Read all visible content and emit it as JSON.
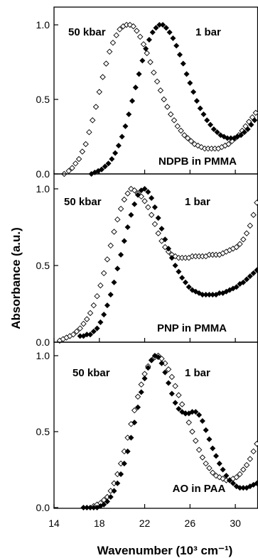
{
  "chart_data": {
    "type": "scatter",
    "xlabel": "Wavenumber (10³ cm⁻¹)",
    "ylabel": "Absorbance (a.u.)",
    "xlim": [
      14,
      32
    ],
    "x_ticks": [
      "14",
      "18",
      "22",
      "26",
      "30"
    ],
    "x_tick_values": [
      14,
      18,
      22,
      26,
      30
    ],
    "ylim": [
      0,
      1.05
    ],
    "y_ticks": [
      "0.0",
      "0.5",
      "1.0"
    ],
    "y_tick_values": [
      0,
      0.5,
      1.0
    ],
    "panels": [
      {
        "sample": "NDPB in PMMA",
        "series": [
          {
            "name": "50 kbar",
            "marker": "open-diamond",
            "x": [
              14.9,
              15.3,
              15.6,
              15.9,
              16.2,
              16.5,
              16.8,
              17.1,
              17.4,
              17.7,
              18.0,
              18.3,
              18.6,
              18.9,
              19.2,
              19.5,
              19.8,
              20.1,
              20.4,
              20.7,
              21.0,
              21.3,
              21.6,
              21.9,
              22.2,
              22.5,
              22.8,
              23.1,
              23.4,
              23.7,
              24.0,
              24.3,
              24.6,
              24.9,
              25.2,
              25.5,
              25.8,
              26.1,
              26.4,
              26.7,
              27.0,
              27.3,
              27.6,
              27.9,
              28.2,
              28.5,
              28.8,
              29.1,
              29.4,
              29.7,
              30.0,
              30.3,
              30.6,
              30.9,
              31.2,
              31.5,
              31.8
            ],
            "y": [
              0.0,
              0.02,
              0.04,
              0.07,
              0.1,
              0.15,
              0.2,
              0.28,
              0.36,
              0.45,
              0.55,
              0.65,
              0.74,
              0.82,
              0.88,
              0.93,
              0.97,
              0.99,
              1.0,
              1.0,
              0.99,
              0.96,
              0.92,
              0.87,
              0.81,
              0.75,
              0.68,
              0.62,
              0.56,
              0.5,
              0.45,
              0.4,
              0.36,
              0.32,
              0.29,
              0.26,
              0.24,
              0.22,
              0.2,
              0.19,
              0.18,
              0.17,
              0.17,
              0.17,
              0.17,
              0.17,
              0.18,
              0.19,
              0.2,
              0.22,
              0.24,
              0.26,
              0.29,
              0.32,
              0.35,
              0.38,
              0.41
            ]
          },
          {
            "name": "1 bar",
            "marker": "filled-diamond",
            "x": [
              17.3,
              17.6,
              17.9,
              18.2,
              18.5,
              18.8,
              19.1,
              19.4,
              19.7,
              20.0,
              20.3,
              20.6,
              20.9,
              21.2,
              21.5,
              21.8,
              22.1,
              22.4,
              22.7,
              23.0,
              23.3,
              23.6,
              23.9,
              24.2,
              24.5,
              24.8,
              25.1,
              25.4,
              25.7,
              26.0,
              26.3,
              26.6,
              26.9,
              27.2,
              27.5,
              27.8,
              28.1,
              28.4,
              28.7,
              29.0,
              29.3,
              29.6,
              29.9,
              30.2,
              30.5,
              30.8,
              31.1,
              31.4,
              31.7
            ],
            "y": [
              0.0,
              0.01,
              0.02,
              0.03,
              0.05,
              0.07,
              0.1,
              0.14,
              0.19,
              0.25,
              0.32,
              0.4,
              0.49,
              0.58,
              0.67,
              0.76,
              0.84,
              0.9,
              0.95,
              0.98,
              1.0,
              1.0,
              0.98,
              0.95,
              0.91,
              0.86,
              0.8,
              0.74,
              0.67,
              0.61,
              0.55,
              0.49,
              0.44,
              0.4,
              0.36,
              0.33,
              0.3,
              0.28,
              0.26,
              0.25,
              0.24,
              0.24,
              0.24,
              0.25,
              0.26,
              0.28,
              0.3,
              0.33,
              0.36
            ]
          }
        ]
      },
      {
        "sample": "PNP in PMMA",
        "series": [
          {
            "name": "50 kbar",
            "marker": "open-diamond",
            "x": [
              14.5,
              14.8,
              15.1,
              15.4,
              15.7,
              16.0,
              16.3,
              16.6,
              16.9,
              17.2,
              17.5,
              17.8,
              18.1,
              18.4,
              18.7,
              19.0,
              19.3,
              19.6,
              19.9,
              20.2,
              20.5,
              20.8,
              21.1,
              21.4,
              21.7,
              22.0,
              22.3,
              22.6,
              22.9,
              23.2,
              23.5,
              23.8,
              24.1,
              24.4,
              24.7,
              25.0,
              25.3,
              25.6,
              25.9,
              26.2,
              26.5,
              26.8,
              27.1,
              27.4,
              27.7,
              28.0,
              28.3,
              28.6,
              28.9,
              29.2,
              29.5,
              29.8,
              30.1,
              30.4,
              30.7,
              31.0,
              31.3,
              31.6,
              31.9
            ],
            "y": [
              0.01,
              0.02,
              0.03,
              0.04,
              0.05,
              0.07,
              0.09,
              0.12,
              0.15,
              0.19,
              0.24,
              0.3,
              0.37,
              0.45,
              0.54,
              0.63,
              0.72,
              0.8,
              0.87,
              0.93,
              0.97,
              1.0,
              0.99,
              0.97,
              0.95,
              0.92,
              0.88,
              0.83,
              0.77,
              0.71,
              0.66,
              0.62,
              0.59,
              0.57,
              0.56,
              0.55,
              0.55,
              0.55,
              0.55,
              0.56,
              0.56,
              0.56,
              0.56,
              0.56,
              0.57,
              0.57,
              0.57,
              0.57,
              0.58,
              0.59,
              0.6,
              0.61,
              0.62,
              0.64,
              0.67,
              0.71,
              0.76,
              0.83,
              0.91
            ]
          },
          {
            "name": "1 bar",
            "marker": "filled-diamond",
            "x": [
              16.3,
              16.6,
              16.9,
              17.2,
              17.5,
              17.8,
              18.1,
              18.4,
              18.7,
              19.0,
              19.3,
              19.6,
              19.9,
              20.2,
              20.5,
              20.8,
              21.1,
              21.4,
              21.7,
              22.0,
              22.3,
              22.6,
              22.9,
              23.2,
              23.5,
              23.8,
              24.1,
              24.4,
              24.7,
              25.0,
              25.3,
              25.6,
              25.9,
              26.2,
              26.5,
              26.8,
              27.1,
              27.4,
              27.7,
              28.0,
              28.3,
              28.6,
              28.9,
              29.2,
              29.5,
              29.8,
              30.1,
              30.4,
              30.7,
              31.0,
              31.3,
              31.6,
              31.9
            ],
            "y": [
              0.04,
              0.04,
              0.05,
              0.05,
              0.07,
              0.09,
              0.13,
              0.18,
              0.24,
              0.31,
              0.39,
              0.48,
              0.57,
              0.66,
              0.75,
              0.83,
              0.9,
              0.96,
              0.99,
              1.0,
              0.98,
              0.94,
              0.88,
              0.81,
              0.74,
              0.67,
              0.61,
              0.55,
              0.5,
              0.46,
              0.42,
              0.39,
              0.36,
              0.34,
              0.33,
              0.32,
              0.31,
              0.31,
              0.31,
              0.31,
              0.31,
              0.32,
              0.32,
              0.33,
              0.34,
              0.35,
              0.36,
              0.38,
              0.39,
              0.41,
              0.43,
              0.45,
              0.47
            ]
          }
        ]
      },
      {
        "sample": "AO in PAA",
        "series": [
          {
            "name": "50 kbar",
            "marker": "open-diamond",
            "x": [
              17.5,
              17.8,
              18.1,
              18.4,
              18.7,
              19.0,
              19.3,
              19.6,
              19.9,
              20.2,
              20.5,
              20.8,
              21.1,
              21.4,
              21.7,
              22.0,
              22.3,
              22.6,
              22.9,
              23.2,
              23.5,
              23.8,
              24.1,
              24.4,
              24.7,
              25.0,
              25.3,
              25.6,
              25.9,
              26.2,
              26.5,
              26.8,
              27.1,
              27.4,
              27.7,
              28.0,
              28.3,
              28.6,
              28.9,
              29.2,
              29.5,
              29.8,
              30.1,
              30.4,
              30.7,
              31.0,
              31.3,
              31.6,
              31.9
            ],
            "y": [
              0.01,
              0.02,
              0.03,
              0.05,
              0.07,
              0.11,
              0.16,
              0.22,
              0.29,
              0.37,
              0.46,
              0.55,
              0.64,
              0.73,
              0.81,
              0.88,
              0.93,
              0.97,
              0.99,
              1.0,
              0.98,
              0.95,
              0.91,
              0.86,
              0.8,
              0.74,
              0.68,
              0.62,
              0.56,
              0.5,
              0.44,
              0.38,
              0.33,
              0.29,
              0.26,
              0.23,
              0.21,
              0.2,
              0.19,
              0.18,
              0.18,
              0.19,
              0.2,
              0.22,
              0.25,
              0.28,
              0.32,
              0.37,
              0.42
            ]
          },
          {
            "name": "1 bar",
            "marker": "filled-diamond",
            "x": [
              16.6,
              16.9,
              17.2,
              17.5,
              17.8,
              18.1,
              18.4,
              18.7,
              19.0,
              19.3,
              19.6,
              19.9,
              20.2,
              20.5,
              20.8,
              21.1,
              21.4,
              21.7,
              22.0,
              22.3,
              22.6,
              22.9,
              23.2,
              23.5,
              23.8,
              24.1,
              24.4,
              24.7,
              25.0,
              25.3,
              25.6,
              25.9,
              26.2,
              26.5,
              26.8,
              27.1,
              27.4,
              27.7,
              28.0,
              28.3,
              28.6,
              28.9,
              29.2,
              29.5,
              29.8,
              30.1,
              30.4,
              30.7,
              31.0,
              31.3,
              31.6,
              31.9
            ],
            "y": [
              0.0,
              0.0,
              0.0,
              0.0,
              0.0,
              0.01,
              0.02,
              0.04,
              0.07,
              0.11,
              0.16,
              0.22,
              0.29,
              0.37,
              0.46,
              0.56,
              0.66,
              0.76,
              0.85,
              0.92,
              0.97,
              1.0,
              0.99,
              0.95,
              0.89,
              0.82,
              0.75,
              0.69,
              0.65,
              0.63,
              0.62,
              0.62,
              0.63,
              0.63,
              0.61,
              0.57,
              0.51,
              0.45,
              0.39,
              0.34,
              0.29,
              0.25,
              0.21,
              0.18,
              0.16,
              0.14,
              0.13,
              0.13,
              0.13,
              0.14,
              0.15,
              0.16
            ]
          }
        ]
      }
    ]
  }
}
